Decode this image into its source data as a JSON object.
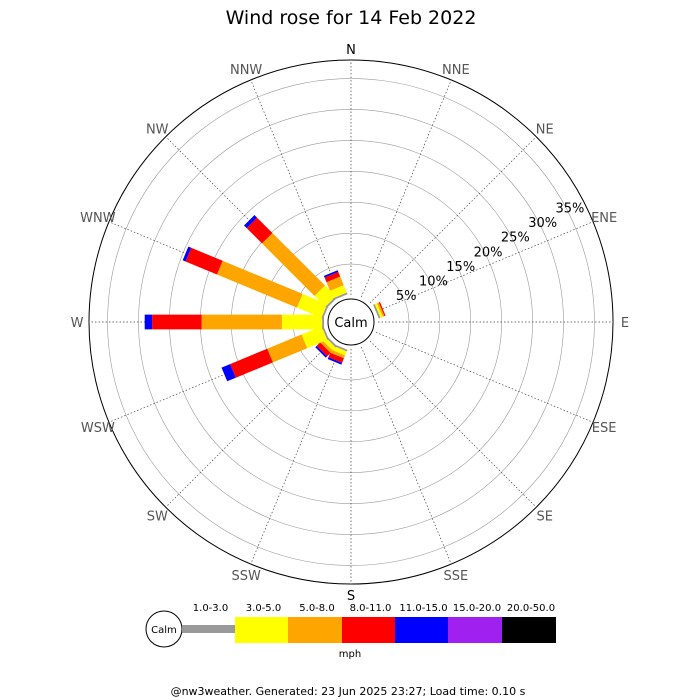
{
  "chart_data": {
    "type": "wind-rose",
    "title": "Wind rose for 14 Feb 2022",
    "directions": [
      "N",
      "NNE",
      "NE",
      "ENE",
      "E",
      "ESE",
      "SE",
      "SSE",
      "S",
      "SSW",
      "SW",
      "WSW",
      "W",
      "WNW",
      "NW",
      "NNW"
    ],
    "radial_ticks": [
      "5%",
      "10%",
      "15%",
      "20%",
      "25%",
      "30%",
      "35%"
    ],
    "radial_values": [
      5,
      10,
      15,
      20,
      25,
      30,
      35
    ],
    "radial_max": 38,
    "calm_label": "Calm",
    "unit_label": "mph",
    "speed_bins": [
      {
        "name": "1.0-3.0",
        "color": "#999999"
      },
      {
        "name": "3.0-5.0",
        "color": "#ffff00"
      },
      {
        "name": "5.0-8.0",
        "color": "#ffa500"
      },
      {
        "name": "8.0-11.0",
        "color": "#ff0000"
      },
      {
        "name": "11.0-15.0",
        "color": "#0000ff"
      },
      {
        "name": "15.0-20.0",
        "color": "#a020f0"
      },
      {
        "name": "20.0-50.0",
        "color": "#000000"
      }
    ],
    "frequencies": {
      "N": [
        0,
        0,
        0,
        0,
        0,
        0,
        0
      ],
      "NNE": [
        0,
        0,
        0,
        0,
        0,
        0,
        0
      ],
      "NE": [
        0,
        0,
        0,
        0,
        0,
        0,
        0
      ],
      "ENE": [
        0.3,
        0.4,
        0.3,
        0.2,
        0,
        0,
        0
      ],
      "E": [
        0,
        0,
        0,
        0,
        0,
        0,
        0
      ],
      "ESE": [
        0,
        0,
        0,
        0,
        0,
        0,
        0
      ],
      "SE": [
        0,
        0,
        0,
        0,
        0,
        0,
        0
      ],
      "SSE": [
        0,
        0,
        0,
        0,
        0,
        0,
        0
      ],
      "S": [
        0,
        0,
        0,
        0,
        0,
        0,
        0
      ],
      "SSW": [
        0.3,
        0.7,
        0.5,
        0.8,
        0.3,
        0,
        0
      ],
      "SW": [
        0.3,
        0.7,
        0.5,
        0.8,
        0.3,
        0,
        0
      ],
      "WSW": [
        0.3,
        3.5,
        6,
        6.5,
        1.5,
        0,
        0
      ],
      "W": [
        0.3,
        6.5,
        13,
        8,
        1.2,
        0,
        0
      ],
      "WNW": [
        0.3,
        4.3,
        14,
        5.5,
        0.5,
        0,
        0
      ],
      "NW": [
        0.3,
        2.5,
        12,
        3.5,
        0.6,
        0,
        0
      ],
      "NNW": [
        0.3,
        1.3,
        1.5,
        0.8,
        0.3,
        0,
        0
      ]
    }
  },
  "footer": "@nw3weather. Generated: 23 Jun 2025 23:27; Load time: 0.10 s"
}
